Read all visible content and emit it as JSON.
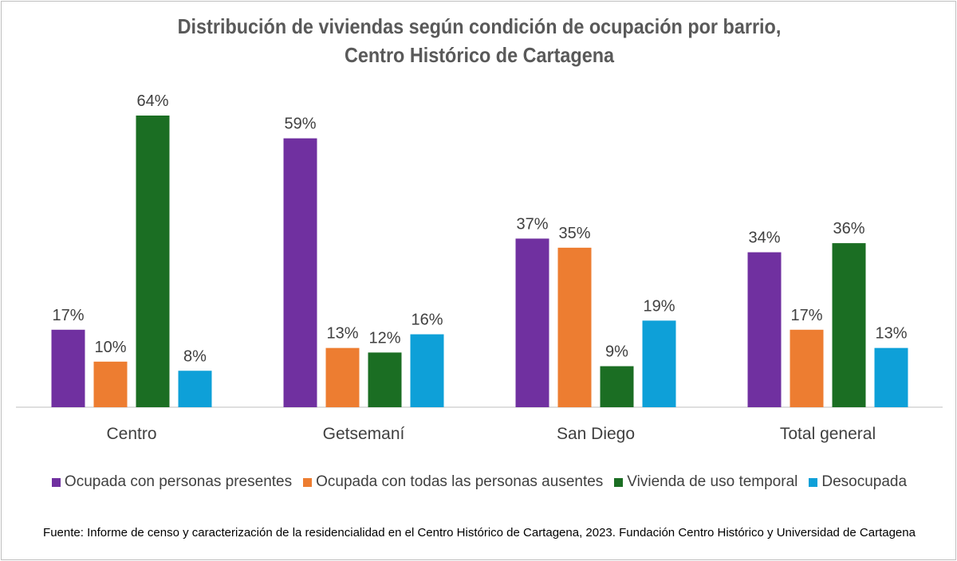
{
  "chart_data": {
    "type": "bar",
    "title_line1": "Distribución de viviendas según condición de ocupación por barrio,",
    "title_line2": "Centro Histórico de Cartagena",
    "categories": [
      "Centro",
      "Getsemaní",
      "San Diego",
      "Total general"
    ],
    "series": [
      {
        "name": "Ocupada con personas presentes",
        "color": "#7030a0",
        "values": [
          17,
          59,
          37,
          34
        ]
      },
      {
        "name": "Ocupada con todas las personas ausentes",
        "color": "#ed7d31",
        "values": [
          10,
          13,
          35,
          17
        ]
      },
      {
        "name": "Vivienda de uso temporal",
        "color": "#1b6e23",
        "values": [
          64,
          12,
          9,
          36
        ]
      },
      {
        "name": "Desocupada",
        "color": "#0ea0d8",
        "values": [
          8,
          16,
          19,
          13
        ]
      }
    ],
    "value_suffix": "%",
    "ylim": [
      0,
      64
    ],
    "legend_position": "bottom",
    "grid": false,
    "source": "Fuente: Informe de censo y caracterización de la residencialidad en el Centro Histórico de Cartagena, 2023. Fundación Centro Histórico y Universidad de Cartagena"
  }
}
